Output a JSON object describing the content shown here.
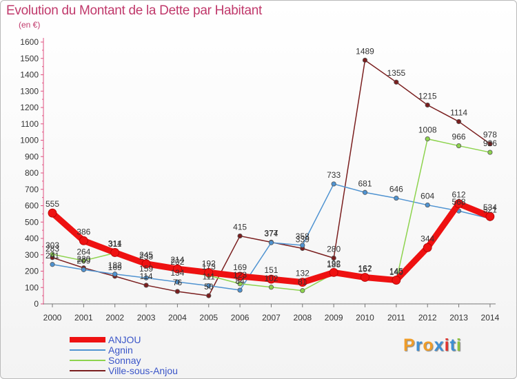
{
  "title": "Evolution du Montant de la Dette par Habitant",
  "subtitle": "(en €)",
  "logo": {
    "letters": [
      "P",
      "r",
      "o",
      "x",
      "i",
      "t",
      "i"
    ],
    "colors": [
      "#ef9d2a",
      "#3f8fd3",
      "#ef9d2a",
      "#3f8fd3",
      "#e2322d",
      "#3f8fd3",
      "#8fc23f"
    ]
  },
  "chart_data": {
    "type": "line",
    "x": [
      "2000",
      "2001",
      "2002",
      "2003",
      "2004",
      "2005",
      "2006",
      "2007",
      "2008",
      "2009",
      "2010",
      "2011",
      "2012",
      "2013",
      "2014"
    ],
    "ylim": [
      0,
      1600
    ],
    "yticks": [
      "0",
      "100",
      "200",
      "300",
      "400",
      "500",
      "600",
      "700",
      "800",
      "900",
      "1000",
      "1100",
      "1200",
      "1300",
      "1400",
      "1500",
      "1600"
    ],
    "grid": false,
    "legend_position": "bottom-left",
    "series": [
      {
        "name": "ANJOU",
        "color": "#ee1111",
        "values": [
          555,
          386,
          314,
          245,
          214,
          192,
          169,
          151,
          132,
          192,
          162,
          145,
          344,
          612,
          534
        ],
        "labels": [
          "555",
          "386",
          "314",
          "245",
          "214",
          "192",
          "169",
          "151",
          "132",
          "192",
          "162",
          "145",
          "344",
          "612",
          "534"
        ]
      },
      {
        "name": "Agnin",
        "color": "#4f93d1",
        "values": [
          241,
          209,
          182,
          159,
          134,
          111,
          84,
          374,
          358,
          733,
          681,
          646,
          604,
          568,
          521
        ],
        "labels": [
          "241",
          "209",
          "182",
          "159",
          "134",
          "111",
          "84",
          "374",
          "358",
          "733",
          "681",
          "646",
          "604",
          "568",
          "521"
        ]
      },
      {
        "name": "Sonnay",
        "color": "#8dd34d",
        "values": [
          303,
          264,
          311,
          233,
          202,
          173,
          123,
          102,
          81,
          185,
          157,
          140,
          1008,
          966,
          926
        ],
        "labels": [
          "303",
          "264",
          "311",
          "233",
          "202",
          "173",
          "123",
          "102",
          "81",
          "185",
          "157",
          "140",
          "1008",
          "966",
          "926"
        ]
      },
      {
        "name": "Ville-sous-Anjou",
        "color": "#7a1e1e",
        "values": [
          283,
          220,
          169,
          114,
          76,
          50,
          415,
          377,
          339,
          280,
          1489,
          1355,
          1215,
          1114,
          978
        ],
        "labels": [
          "283",
          "220",
          "169",
          "114",
          "76",
          "50",
          "415",
          "377",
          "339",
          "280",
          "1489",
          "1355",
          "1215",
          "1114",
          "978"
        ]
      }
    ]
  }
}
